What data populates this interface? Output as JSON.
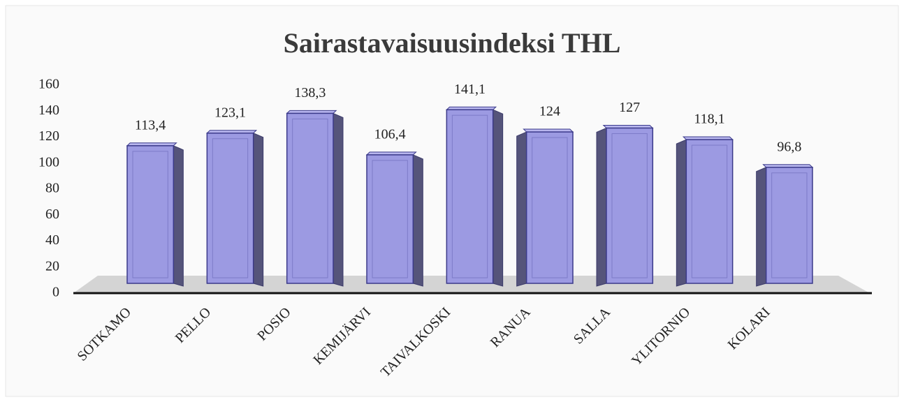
{
  "chart_data": {
    "type": "bar3d",
    "title": "Sairastavaisuusindeksi THL",
    "categories": [
      "SOTKAMO",
      "PELLO",
      "POSIO",
      "KEMIJÄRVI",
      "TAIVALKOSKI",
      "RANUA",
      "SALLA",
      "YLITORNIO",
      "KOLARI"
    ],
    "values": [
      113.4,
      123.1,
      138.3,
      106.4,
      141.1,
      124,
      127,
      118.1,
      96.8
    ],
    "value_labels": [
      "113,4",
      "123,1",
      "138,3",
      "106,4",
      "141,1",
      "124",
      "127",
      "118,1",
      "96,8"
    ],
    "color": "#9c9ae2",
    "ylim": [
      0,
      160
    ],
    "yticks": [
      0,
      20,
      40,
      60,
      80,
      100,
      120,
      140,
      160
    ],
    "grid": false
  }
}
